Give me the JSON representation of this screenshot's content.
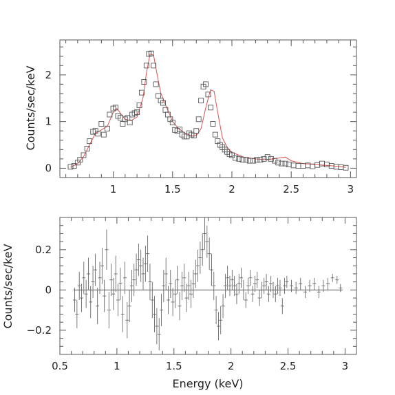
{
  "chart_data": [
    {
      "type": "scatter",
      "panel": "spectrum",
      "xlabel": "",
      "ylabel": "Counts/sec/keV",
      "xlim": [
        0.55,
        3.05
      ],
      "ylim": [
        -0.2,
        2.75
      ],
      "xticks_major": [
        1,
        1.5,
        2,
        2.5,
        3
      ],
      "xtick_labels": [
        "1",
        "1.5",
        "2",
        "2.5",
        "3"
      ],
      "yticks_major": [
        0,
        1,
        2
      ],
      "ytick_labels": [
        "0",
        "1",
        "2"
      ],
      "marker_color": "#555555",
      "model_color": "#e05050",
      "series": [
        {
          "kind": "data",
          "marker": "square",
          "x": [
            0.64,
            0.67,
            0.7,
            0.72,
            0.75,
            0.78,
            0.8,
            0.83,
            0.85,
            0.87,
            0.9,
            0.92,
            0.95,
            0.97,
            1.0,
            1.02,
            1.04,
            1.06,
            1.08,
            1.1,
            1.12,
            1.14,
            1.16,
            1.18,
            1.2,
            1.22,
            1.24,
            1.26,
            1.28,
            1.3,
            1.32,
            1.34,
            1.36,
            1.38,
            1.4,
            1.42,
            1.44,
            1.46,
            1.48,
            1.5,
            1.52,
            1.54,
            1.56,
            1.58,
            1.6,
            1.62,
            1.64,
            1.66,
            1.68,
            1.7,
            1.72,
            1.74,
            1.76,
            1.78,
            1.8,
            1.82,
            1.84,
            1.86,
            1.88,
            1.9,
            1.92,
            1.94,
            1.96,
            1.98,
            2.0,
            2.03,
            2.06,
            2.09,
            2.12,
            2.15,
            2.18,
            2.21,
            2.24,
            2.27,
            2.3,
            2.33,
            2.36,
            2.39,
            2.42,
            2.45,
            2.48,
            2.52,
            2.56,
            2.6,
            2.64,
            2.68,
            2.72,
            2.76,
            2.8,
            2.84,
            2.88,
            2.92,
            2.96
          ],
          "y": [
            0.03,
            0.05,
            0.12,
            0.18,
            0.28,
            0.42,
            0.58,
            0.78,
            0.8,
            0.74,
            0.95,
            0.72,
            0.85,
            1.15,
            1.28,
            1.3,
            1.12,
            1.08,
            0.95,
            1.05,
            1.08,
            0.98,
            1.15,
            1.18,
            1.2,
            1.35,
            1.62,
            1.85,
            2.2,
            2.45,
            2.46,
            2.2,
            1.8,
            1.55,
            1.45,
            1.4,
            1.25,
            1.15,
            1.05,
            0.98,
            0.82,
            0.8,
            0.83,
            0.72,
            0.68,
            0.68,
            0.75,
            0.72,
            0.7,
            0.8,
            1.05,
            1.45,
            1.75,
            1.8,
            1.58,
            1.3,
            0.95,
            0.72,
            0.58,
            0.5,
            0.45,
            0.4,
            0.35,
            0.3,
            0.28,
            0.22,
            0.2,
            0.18,
            0.18,
            0.16,
            0.16,
            0.18,
            0.18,
            0.2,
            0.24,
            0.2,
            0.16,
            0.12,
            0.1,
            0.1,
            0.08,
            0.06,
            0.05,
            0.05,
            0.06,
            0.04,
            0.07,
            0.1,
            0.08,
            0.05,
            0.03,
            0.02,
            0.01
          ]
        },
        {
          "kind": "model",
          "x": [
            0.64,
            0.7,
            0.75,
            0.8,
            0.85,
            0.9,
            0.95,
            1.0,
            1.03,
            1.06,
            1.1,
            1.15,
            1.2,
            1.25,
            1.28,
            1.31,
            1.34,
            1.37,
            1.4,
            1.45,
            1.5,
            1.55,
            1.6,
            1.65,
            1.7,
            1.74,
            1.78,
            1.82,
            1.85,
            1.88,
            1.92,
            1.96,
            2.0,
            2.1,
            2.2,
            2.3,
            2.4,
            2.45,
            2.5,
            2.6,
            2.7,
            2.8,
            2.9,
            2.96
          ],
          "y": [
            0.02,
            0.1,
            0.25,
            0.5,
            0.75,
            0.82,
            0.9,
            1.2,
            1.28,
            1.18,
            1.05,
            1.02,
            1.1,
            1.5,
            2.05,
            2.45,
            2.42,
            2.0,
            1.62,
            1.3,
            1.0,
            0.85,
            0.76,
            0.7,
            0.7,
            0.85,
            1.3,
            1.68,
            1.65,
            1.2,
            0.65,
            0.45,
            0.34,
            0.24,
            0.2,
            0.18,
            0.22,
            0.24,
            0.16,
            0.1,
            0.08,
            0.06,
            0.04,
            0.02
          ]
        }
      ]
    },
    {
      "type": "scatter",
      "panel": "residuals",
      "xlabel": "Energy (keV)",
      "ylabel": "Counts/sec/keV",
      "xlim": [
        0.5,
        3.1
      ],
      "ylim": [
        -0.32,
        0.36
      ],
      "xticks_major": [
        0.5,
        1,
        1.5,
        2,
        2.5,
        3
      ],
      "xtick_labels": [
        "0.5",
        "1",
        "1.5",
        "2",
        "2.5",
        "3"
      ],
      "yticks_major": [
        -0.2,
        0,
        0.2
      ],
      "ytick_labels": [
        "−0.2",
        "0",
        "0.2"
      ],
      "zero_line": true,
      "marker_color": "#555555",
      "series": [
        {
          "kind": "residual",
          "x": [
            0.63,
            0.65,
            0.67,
            0.69,
            0.71,
            0.73,
            0.75,
            0.77,
            0.79,
            0.81,
            0.83,
            0.85,
            0.87,
            0.89,
            0.91,
            0.93,
            0.95,
            0.97,
            0.99,
            1.01,
            1.03,
            1.05,
            1.07,
            1.09,
            1.11,
            1.13,
            1.15,
            1.17,
            1.19,
            1.21,
            1.23,
            1.25,
            1.27,
            1.29,
            1.31,
            1.33,
            1.35,
            1.37,
            1.39,
            1.41,
            1.43,
            1.45,
            1.47,
            1.49,
            1.51,
            1.53,
            1.55,
            1.57,
            1.59,
            1.61,
            1.63,
            1.65,
            1.67,
            1.69,
            1.71,
            1.73,
            1.75,
            1.77,
            1.79,
            1.81,
            1.83,
            1.85,
            1.87,
            1.89,
            1.91,
            1.93,
            1.95,
            1.97,
            1.99,
            2.01,
            2.03,
            2.05,
            2.07,
            2.09,
            2.11,
            2.13,
            2.15,
            2.17,
            2.19,
            2.21,
            2.23,
            2.25,
            2.27,
            2.29,
            2.31,
            2.33,
            2.35,
            2.37,
            2.39,
            2.41,
            2.43,
            2.45,
            2.47,
            2.49,
            2.53,
            2.57,
            2.61,
            2.65,
            2.69,
            2.73,
            2.77,
            2.81,
            2.85,
            2.89,
            2.93,
            2.96
          ],
          "y": [
            -0.05,
            -0.12,
            0.02,
            -0.04,
            0.06,
            -0.02,
            0.08,
            -0.06,
            0.04,
            0.1,
            -0.08,
            0.06,
            0.12,
            -0.03,
            0.2,
            -0.1,
            0.05,
            -0.02,
            0.08,
            -0.05,
            0.03,
            -0.12,
            0.06,
            -0.15,
            -0.08,
            0.02,
            0.05,
            0.1,
            0.15,
            0.12,
            0.08,
            0.13,
            0.18,
            0.04,
            -0.05,
            -0.12,
            -0.18,
            -0.22,
            -0.1,
            0.02,
            0.08,
            -0.05,
            0.03,
            -0.06,
            -0.02,
            0.05,
            -0.08,
            0.02,
            0.06,
            -0.04,
            0.02,
            -0.02,
            0.03,
            0.08,
            0.12,
            0.16,
            0.2,
            0.28,
            0.24,
            0.18,
            0.1,
            0.02,
            -0.1,
            -0.18,
            -0.15,
            -0.08,
            0.02,
            0.06,
            0.02,
            0.05,
            0.02,
            -0.02,
            0.03,
            0.06,
            0.0,
            -0.05,
            0.02,
            0.06,
            -0.02,
            0.03,
            0.05,
            -0.04,
            0.0,
            0.02,
            0.04,
            -0.02,
            0.03,
            0.0,
            -0.02,
            0.02,
            0.01,
            -0.08,
            0.02,
            0.04,
            0.02,
            0.01,
            0.03,
            -0.01,
            0.02,
            0.03,
            -0.01,
            0.02,
            0.03,
            0.06,
            0.05,
            0.01
          ],
          "yerr": [
            0.06,
            0.07,
            0.07,
            0.07,
            0.08,
            0.07,
            0.08,
            0.08,
            0.08,
            0.08,
            0.09,
            0.08,
            0.09,
            0.08,
            0.1,
            0.09,
            0.08,
            0.08,
            0.09,
            0.08,
            0.08,
            0.09,
            0.08,
            0.09,
            0.08,
            0.08,
            0.08,
            0.08,
            0.08,
            0.08,
            0.08,
            0.09,
            0.09,
            0.09,
            0.09,
            0.09,
            0.09,
            0.08,
            0.08,
            0.08,
            0.08,
            0.07,
            0.07,
            0.07,
            0.07,
            0.07,
            0.07,
            0.07,
            0.07,
            0.07,
            0.07,
            0.07,
            0.07,
            0.07,
            0.08,
            0.08,
            0.08,
            0.08,
            0.08,
            0.08,
            0.08,
            0.07,
            0.07,
            0.07,
            0.07,
            0.06,
            0.06,
            0.06,
            0.05,
            0.05,
            0.05,
            0.05,
            0.05,
            0.05,
            0.05,
            0.04,
            0.04,
            0.04,
            0.04,
            0.04,
            0.04,
            0.04,
            0.04,
            0.04,
            0.04,
            0.04,
            0.04,
            0.04,
            0.04,
            0.04,
            0.04,
            0.04,
            0.04,
            0.03,
            0.03,
            0.03,
            0.03,
            0.03,
            0.03,
            0.03,
            0.03,
            0.03,
            0.03,
            0.02,
            0.02,
            0.02
          ]
        }
      ]
    }
  ]
}
